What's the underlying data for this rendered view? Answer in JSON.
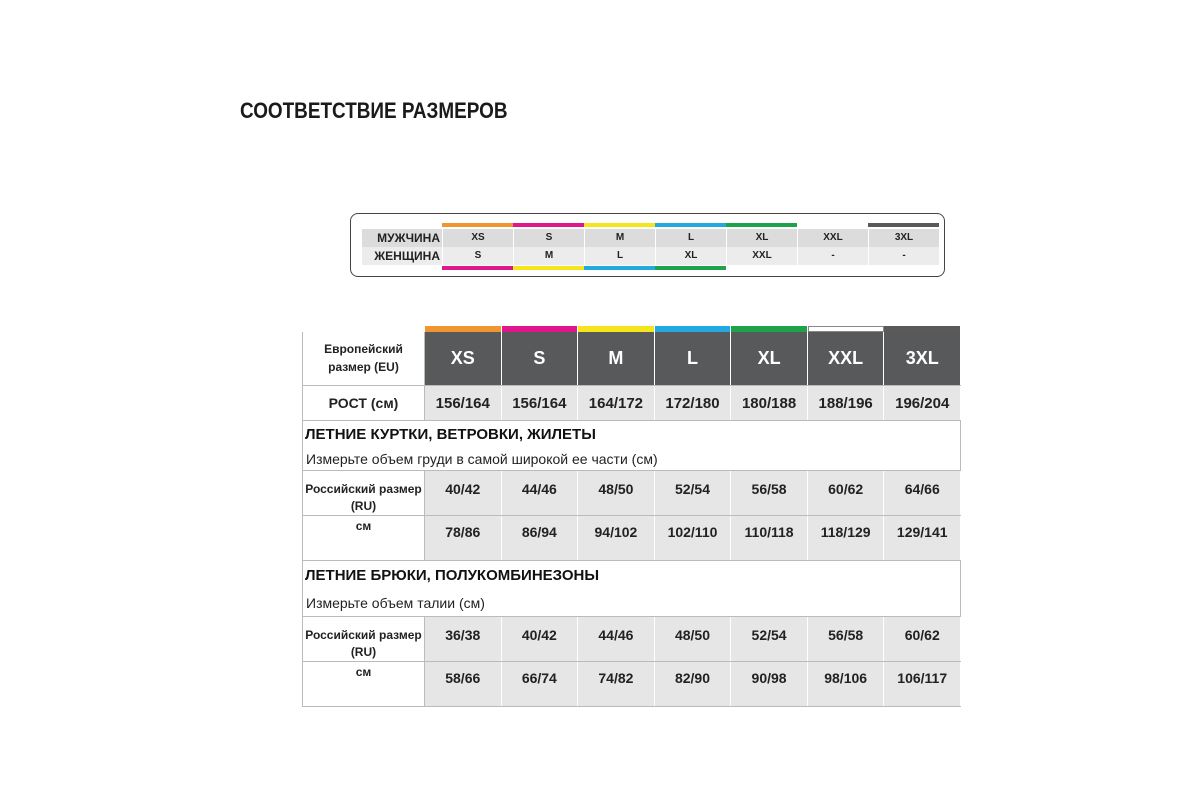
{
  "title": "СООТВЕТСТВИЕ РАЗМЕРОВ",
  "colors": [
    "#f0962e",
    "#e0168c",
    "#f5e51c",
    "#22a9e0",
    "#1ea34a",
    "#ffffff",
    "#5a5a5a"
  ],
  "correspondence": {
    "men": {
      "label": "МУЖЧИНА",
      "sizes": [
        "XS",
        "S",
        "M",
        "L",
        "XL",
        "XXL",
        "3XL"
      ]
    },
    "women": {
      "label": "ЖЕНЩИНА",
      "sizes": [
        "S",
        "M",
        "L",
        "XL",
        "XXL",
        "-",
        "-"
      ]
    }
  },
  "table": {
    "eu_label": "Европейский размер (EU)",
    "eu_sizes": [
      "XS",
      "S",
      "M",
      "L",
      "XL",
      "XXL",
      "3XL"
    ],
    "height_label": "РОСТ (см)",
    "heights": [
      "156/164",
      "156/164",
      "164/172",
      "172/180",
      "180/188",
      "188/196",
      "196/204"
    ],
    "sections": [
      {
        "title": "ЛЕТНИЕ КУРТКИ, ВЕТРОВКИ, ЖИЛЕТЫ",
        "subtitle": "Измерьте объем груди в самой широкой ее части (см)",
        "ru_label": "Российский размер (RU)",
        "ru": [
          "40/42",
          "44/46",
          "48/50",
          "52/54",
          "56/58",
          "60/62",
          "64/66"
        ],
        "cm_label": "см",
        "cm": [
          "78/86",
          "86/94",
          "94/102",
          "102/110",
          "110/118",
          "118/129",
          "129/141"
        ]
      },
      {
        "title": "ЛЕТНИЕ БРЮКИ, ПОЛУКОМБИНЕЗОНЫ",
        "subtitle": "Измерьте объем талии (см)",
        "ru_label": "Российский размер (RU)",
        "ru": [
          "36/38",
          "40/42",
          "44/46",
          "48/50",
          "52/54",
          "56/58",
          "60/62"
        ],
        "cm_label": "см",
        "cm": [
          "58/66",
          "66/74",
          "74/82",
          "82/90",
          "90/98",
          "98/106",
          "106/117"
        ]
      }
    ]
  }
}
